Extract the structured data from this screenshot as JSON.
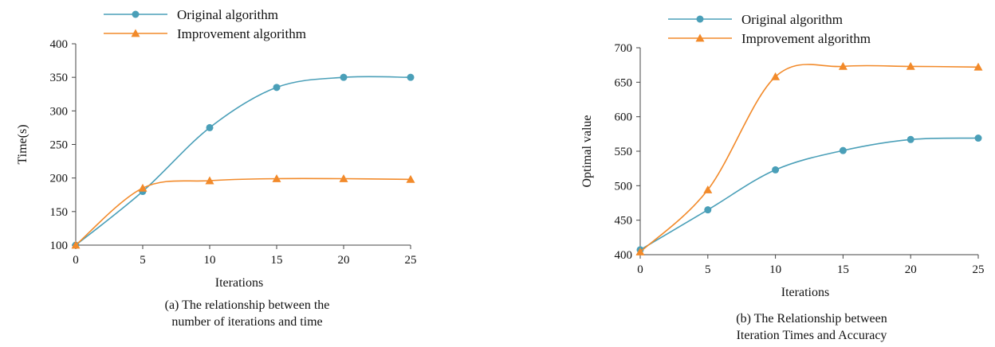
{
  "colors": {
    "original": "#4a9fb8",
    "improvement": "#f28a2a"
  },
  "chart_data": [
    {
      "type": "line",
      "caption_lines": [
        "(a) The relationship between the",
        "number of iterations and time"
      ],
      "xlabel": "Iterations",
      "ylabel": "Time(s)",
      "xlim": [
        0,
        25
      ],
      "ylim": [
        100,
        400
      ],
      "xticks": [
        0,
        5,
        10,
        15,
        20,
        25
      ],
      "yticks": [
        100,
        150,
        200,
        250,
        300,
        350,
        400
      ],
      "legend_position": "top-left",
      "series": [
        {
          "name": "Original algorithm",
          "marker": "circle",
          "x": [
            0,
            5,
            10,
            15,
            20,
            25
          ],
          "y": [
            100,
            180,
            275,
            335,
            350,
            350
          ]
        },
        {
          "name": "Improvement algorithm",
          "marker": "triangle",
          "x": [
            0,
            5,
            10,
            15,
            20,
            25
          ],
          "y": [
            100,
            185,
            196,
            199,
            199,
            198
          ]
        }
      ]
    },
    {
      "type": "line",
      "caption_lines": [
        "(b) The Relationship between",
        "Iteration Times and Accuracy"
      ],
      "xlabel": "Iterations",
      "ylabel": "Optimal value",
      "xlim": [
        0,
        25
      ],
      "ylim": [
        400,
        700
      ],
      "xticks": [
        0,
        5,
        10,
        15,
        20,
        25
      ],
      "yticks": [
        400,
        450,
        500,
        550,
        600,
        650,
        700
      ],
      "legend_position": "top-left",
      "series": [
        {
          "name": "Original algorithm",
          "marker": "circle",
          "x": [
            0,
            5,
            10,
            15,
            20,
            25
          ],
          "y": [
            407,
            465,
            523,
            551,
            567,
            569
          ]
        },
        {
          "name": "Improvement algorithm",
          "marker": "triangle",
          "x": [
            0,
            5,
            10,
            15,
            20,
            25
          ],
          "y": [
            404,
            494,
            658,
            673,
            673,
            672
          ]
        }
      ]
    }
  ]
}
